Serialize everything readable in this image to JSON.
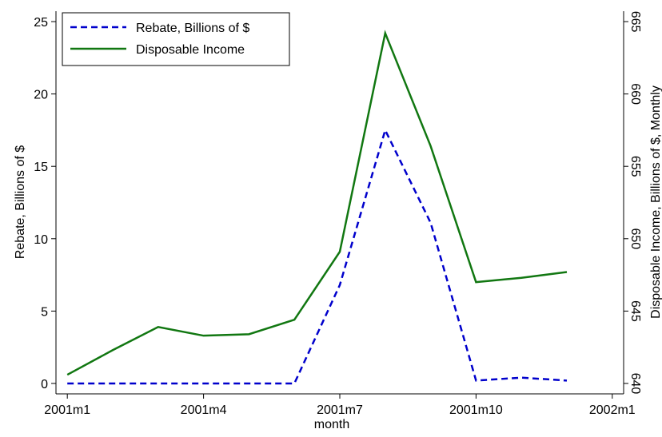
{
  "chart_data": {
    "type": "line",
    "x": [
      1,
      2,
      3,
      4,
      5,
      6,
      7,
      8,
      9,
      10,
      11,
      12
    ],
    "xlim": [
      0.75,
      13.25
    ],
    "xticks": [
      {
        "value": 1,
        "label": "2001m1"
      },
      {
        "value": 4,
        "label": "2001m4"
      },
      {
        "value": 7,
        "label": "2001m7"
      },
      {
        "value": 10,
        "label": "2001m10"
      },
      {
        "value": 13,
        "label": "2002m1"
      }
    ],
    "xlabel": "month",
    "ylabel": "Rebate, Billions of $",
    "y2label": "Disposable Income, Billions of $, Monthly",
    "ylim": [
      -0.72,
      25.72
    ],
    "yticks": [
      0,
      5,
      10,
      15,
      20,
      25
    ],
    "y2lim": [
      639.28,
      665.72
    ],
    "y2ticks": [
      640,
      645,
      650,
      655,
      660,
      665
    ],
    "legend": "top-left",
    "series": [
      {
        "name": "Rebate, Billions of $",
        "color": "#0000cc",
        "dash": true,
        "values": [
          0,
          0,
          0,
          0,
          0,
          0,
          6.8,
          17.5,
          11.1,
          0.2,
          0.4,
          0.2
        ]
      },
      {
        "name": "Disposable Income",
        "color": "#117711",
        "axis": "y2",
        "values": [
          640.6,
          642.3,
          643.9,
          643.3,
          643.4,
          644.4,
          649.1,
          664.2,
          656.4,
          647.0,
          647.3,
          647.7
        ]
      }
    ]
  }
}
